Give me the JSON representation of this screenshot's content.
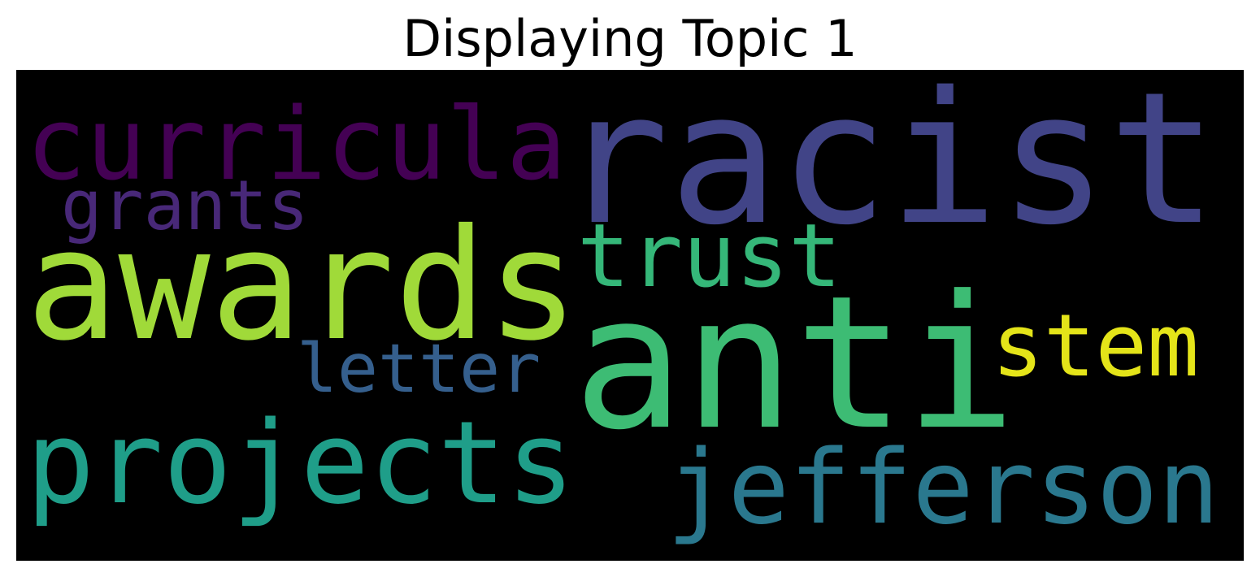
{
  "title": "Displaying Topic 1",
  "wordcloud": {
    "background": "#000000",
    "words": [
      {
        "name": "word-racist",
        "text": "racist",
        "color": "#414487"
      },
      {
        "name": "word-anti",
        "text": "anti",
        "color": "#3dbc74"
      },
      {
        "name": "word-awards",
        "text": "awards",
        "color": "#a0da39"
      },
      {
        "name": "word-curricula",
        "text": "curricula",
        "color": "#440154"
      },
      {
        "name": "word-projects",
        "text": "projects",
        "color": "#1f9e89"
      },
      {
        "name": "word-jefferson",
        "text": "jefferson",
        "color": "#2a788e"
      },
      {
        "name": "word-trust",
        "text": "trust",
        "color": "#35b779"
      },
      {
        "name": "word-stem",
        "text": "stem",
        "color": "#e4e419"
      },
      {
        "name": "word-grants",
        "text": "grants",
        "color": "#482878"
      },
      {
        "name": "word-letter",
        "text": "letter",
        "color": "#355f8d"
      }
    ]
  }
}
